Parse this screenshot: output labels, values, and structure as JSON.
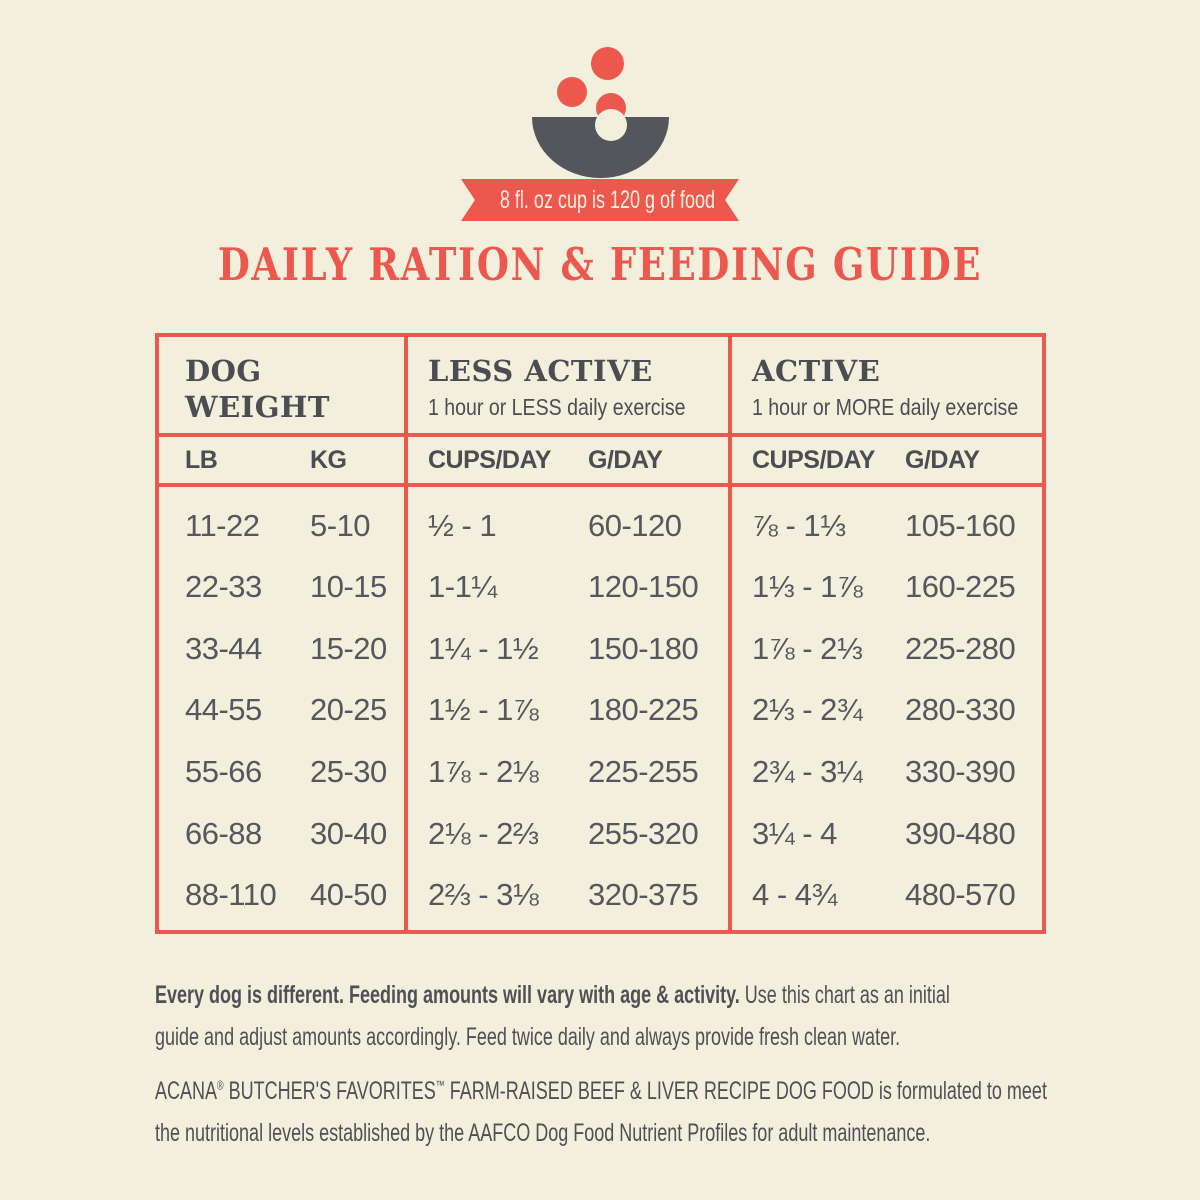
{
  "colors": {
    "background": "#f2efdd",
    "accent_red": "#ec574e",
    "dark_gray": "#54565b",
    "text_gray": "#56575c"
  },
  "header_graphic": {
    "bowl_icon": "dog-food-bowl",
    "kibble_icon": "kibble-dots",
    "ribbon_text": "8 fl. oz cup is 120 g of food"
  },
  "title": "DAILY RATION & FEEDING GUIDE",
  "table": {
    "groups": [
      {
        "title": "DOG\nWEIGHT",
        "subtitle": "",
        "columns": [
          "LB",
          "KG"
        ]
      },
      {
        "title": "LESS ACTIVE",
        "subtitle": "1 hour or LESS daily exercise",
        "columns": [
          "CUPS/DAY",
          "G/DAY"
        ]
      },
      {
        "title": "ACTIVE",
        "subtitle": "1 hour or MORE daily exercise",
        "columns": [
          "CUPS/DAY",
          "G/DAY"
        ]
      }
    ]
  },
  "chart_data": {
    "type": "table",
    "title": "DAILY RATION & FEEDING GUIDE",
    "note": "8 fl. oz cup is 120 g of food",
    "column_groups": [
      "DOG WEIGHT",
      "LESS ACTIVE (1 hour or LESS daily exercise)",
      "ACTIVE (1 hour or MORE daily exercise)"
    ],
    "columns": [
      "LB",
      "KG",
      "LESS ACTIVE CUPS/DAY",
      "LESS ACTIVE G/DAY",
      "ACTIVE CUPS/DAY",
      "ACTIVE G/DAY"
    ],
    "rows": [
      [
        "11-22",
        "5-10",
        "½ - 1",
        "60-120",
        "⅞ - 1⅓",
        "105-160"
      ],
      [
        "22-33",
        "10-15",
        "1-1¼",
        "120-150",
        "1⅓ - 1⅞",
        "160-225"
      ],
      [
        "33-44",
        "15-20",
        "1¼ - 1½",
        "150-180",
        "1⅞ - 2⅓",
        "225-280"
      ],
      [
        "44-55",
        "20-25",
        "1½ - 1⅞",
        "180-225",
        "2⅓ - 2¾",
        "280-330"
      ],
      [
        "55-66",
        "25-30",
        "1⅞ - 2⅛",
        "225-255",
        "2¾ - 3¼",
        "330-390"
      ],
      [
        "66-88",
        "30-40",
        "2⅛ - 2⅔",
        "255-320",
        "3¼ - 4",
        "390-480"
      ],
      [
        "88-110",
        "40-50",
        "2⅔ - 3⅛",
        "320-375",
        "4 - 4¾",
        "480-570"
      ]
    ]
  },
  "footnotes": {
    "note1_bold": "Every dog is different. Feeding amounts will vary with age & activity.",
    "note1_line1_rest": " Use this chart as an initial",
    "note1_line2": "guide and adjust amounts accordingly. Feed twice daily and always provide fresh clean water.",
    "note2_brand": "ACANA",
    "note2_reg_mark": "®",
    "note2_brand2": " BUTCHER'S FAVORITES",
    "note2_tm_mark": "™",
    "note2_line1_rest": " FARM-RAISED BEEF & LIVER RECIPE DOG FOOD is formulated to meet",
    "note2_line2": "the nutritional levels established by the AAFCO Dog Food Nutrient Profiles for adult maintenance."
  }
}
